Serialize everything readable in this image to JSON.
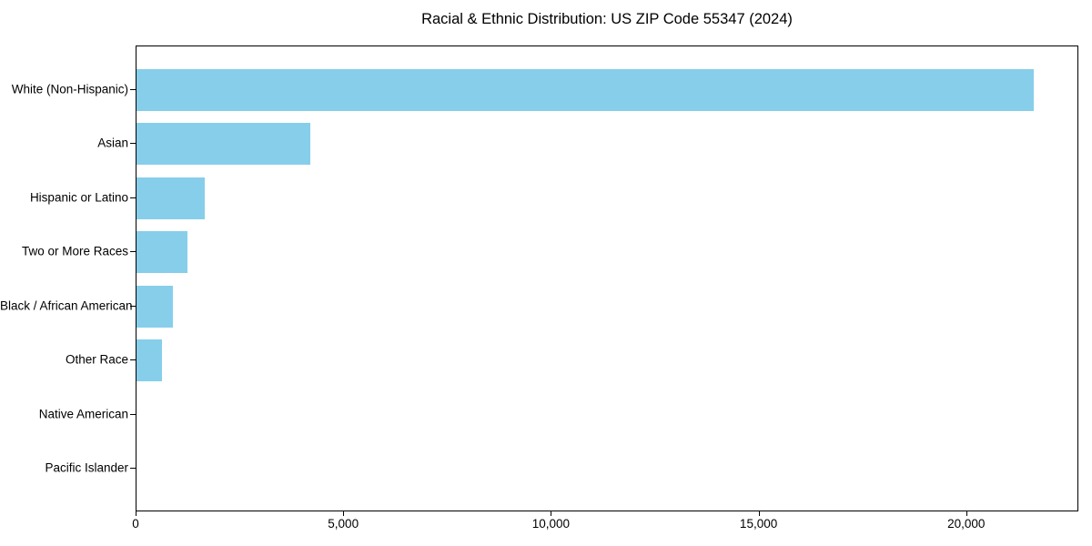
{
  "chart_data": {
    "type": "bar",
    "orientation": "horizontal",
    "title": "Racial & Ethnic Distribution: US ZIP Code 55347 (2024)",
    "categories": [
      "White (Non-Hispanic)",
      "Asian",
      "Hispanic or Latino",
      "Two or More Races",
      "Black / African American",
      "Other Race",
      "Native American",
      "Pacific Islander"
    ],
    "values": [
      21650,
      4200,
      1650,
      1230,
      880,
      620,
      0,
      0
    ],
    "bar_color": "#87CEEB",
    "xlabel": "",
    "ylabel": "",
    "xlim": [
      0,
      22700
    ],
    "x_ticks": [
      0,
      5000,
      10000,
      15000,
      20000
    ],
    "x_tick_labels": [
      "0",
      "5,000",
      "10,000",
      "15,000",
      "20,000"
    ],
    "grid": false,
    "legend": "none",
    "background_color": "#ffffff",
    "frame_color": "#000000"
  }
}
